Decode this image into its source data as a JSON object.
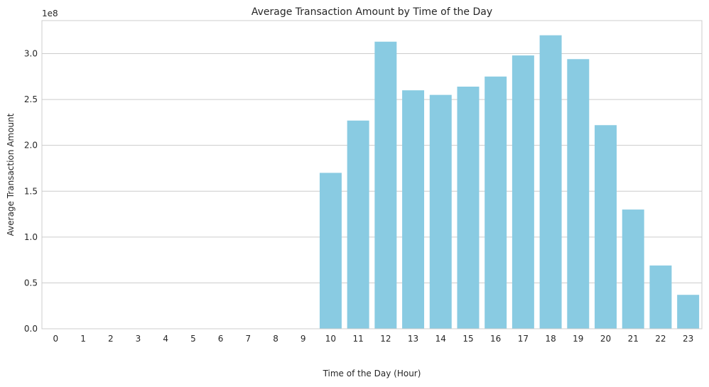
{
  "chart_data": {
    "type": "bar",
    "title": "Average Transaction Amount by Time of the Day",
    "xlabel": "Time of the Day (Hour)",
    "ylabel": "Average Transaction Amount",
    "offset_label": "1e8",
    "categories": [
      "0",
      "1",
      "2",
      "3",
      "4",
      "5",
      "6",
      "7",
      "8",
      "9",
      "10",
      "11",
      "12",
      "13",
      "14",
      "15",
      "16",
      "17",
      "18",
      "19",
      "20",
      "21",
      "22",
      "23"
    ],
    "values": [
      0,
      0,
      0,
      0,
      0,
      0,
      0,
      0,
      0,
      0,
      170000000,
      227000000,
      313000000,
      260000000,
      255000000,
      264000000,
      275000000,
      298000000,
      320000000,
      294000000,
      222000000,
      130000000,
      69000000,
      37000000
    ],
    "ylim": [
      0,
      336000000
    ],
    "yticks": [
      0,
      50000000,
      100000000,
      150000000,
      200000000,
      250000000,
      300000000
    ],
    "ytick_labels": [
      "0.0",
      "0.5",
      "1.0",
      "1.5",
      "2.0",
      "2.5",
      "3.0"
    ],
    "grid": true,
    "bar_color": "#89cbe2",
    "grid_color": "#cccccc",
    "frame_color": "#cccccc"
  }
}
